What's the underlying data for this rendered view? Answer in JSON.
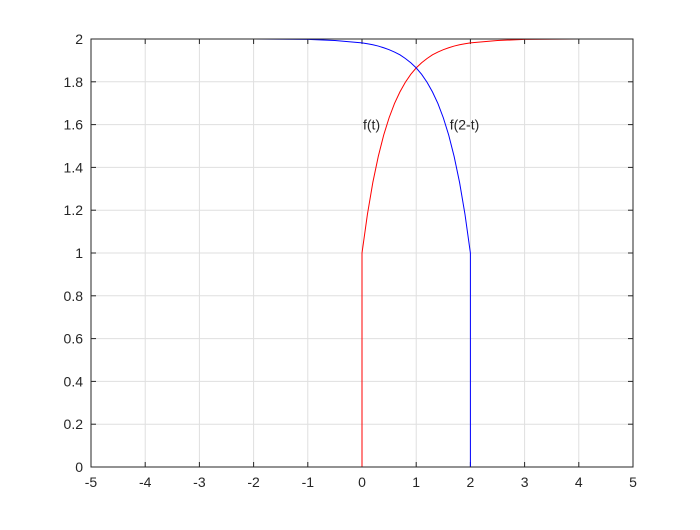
{
  "chart_data": {
    "type": "line",
    "x": [
      -5,
      -4,
      -3,
      -2,
      -1,
      -0.5,
      0,
      0,
      0.1,
      0.2,
      0.3,
      0.4,
      0.5,
      0.6,
      0.7,
      0.8,
      0.9,
      1,
      1.1,
      1.2,
      1.3,
      1.4,
      1.5,
      1.6,
      1.7,
      1.8,
      1.9,
      2,
      2,
      2.5,
      3,
      4,
      5
    ],
    "series": [
      {
        "name": "f(t)",
        "color": "#ff0000",
        "values": [
          0,
          0,
          0,
          0,
          0,
          0,
          0,
          1,
          1.181,
          1.33,
          1.451,
          1.551,
          1.632,
          1.699,
          1.753,
          1.798,
          1.835,
          1.865,
          1.889,
          1.909,
          1.926,
          1.939,
          1.95,
          1.959,
          1.967,
          1.973,
          1.978,
          1.982,
          1.982,
          1.993,
          1.998,
          2,
          2
        ]
      },
      {
        "name": "f(2-t)",
        "color": "#0000ff",
        "values": [
          2,
          2,
          2,
          2,
          1.998,
          1.993,
          1.982,
          1.982,
          1.978,
          1.973,
          1.967,
          1.959,
          1.95,
          1.939,
          1.926,
          1.909,
          1.889,
          1.865,
          1.835,
          1.798,
          1.753,
          1.699,
          1.632,
          1.551,
          1.451,
          1.33,
          1.181,
          1,
          0,
          0,
          0,
          0,
          0
        ]
      }
    ],
    "xlim": [
      -5,
      5
    ],
    "ylim": [
      0,
      2
    ],
    "xticks": [
      -5,
      -4,
      -3,
      -2,
      -1,
      0,
      1,
      2,
      3,
      4,
      5
    ],
    "yticks": [
      0,
      0.2,
      0.4,
      0.6,
      0.8,
      1,
      1.2,
      1.4,
      1.6,
      1.8,
      2
    ],
    "grid": true
  }
}
